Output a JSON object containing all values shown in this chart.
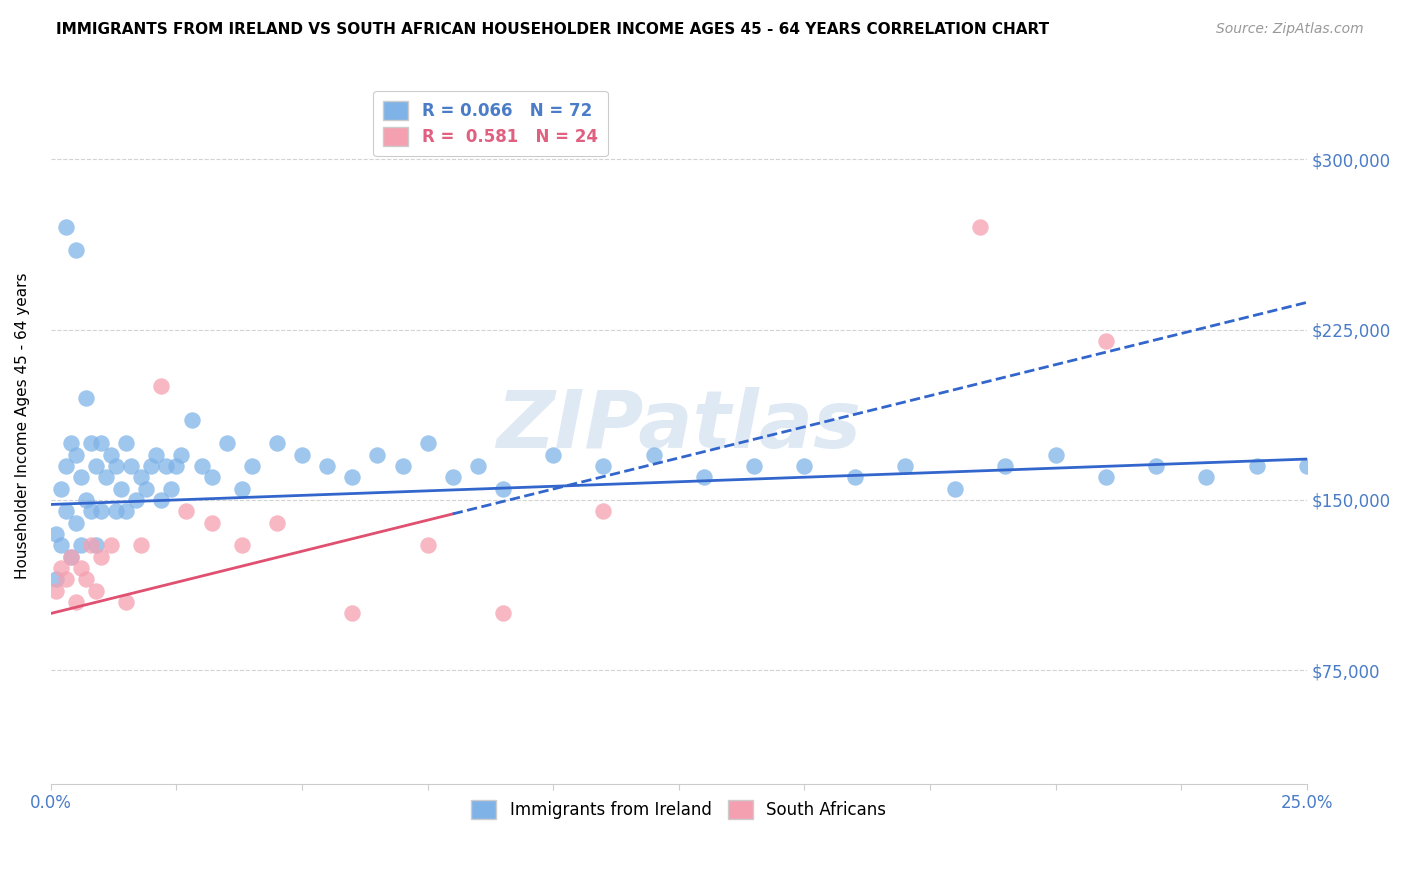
{
  "title": "IMMIGRANTS FROM IRELAND VS SOUTH AFRICAN HOUSEHOLDER INCOME AGES 45 - 64 YEARS CORRELATION CHART",
  "source": "Source: ZipAtlas.com",
  "ylabel": "Householder Income Ages 45 - 64 years",
  "xlim": [
    0.0,
    0.25
  ],
  "ylim": [
    25000,
    340000
  ],
  "xticks": [
    0.0,
    0.025,
    0.05,
    0.075,
    0.1,
    0.125,
    0.15,
    0.175,
    0.2,
    0.225,
    0.25
  ],
  "xticklabels": [
    "0.0%",
    "",
    "",
    "",
    "",
    "",
    "",
    "",
    "",
    "",
    "25.0%"
  ],
  "ytick_positions": [
    75000,
    150000,
    225000,
    300000
  ],
  "ytick_labels": [
    "$75,000",
    "$150,000",
    "$225,000",
    "$300,000"
  ],
  "legend1_label": "R = 0.066   N = 72",
  "legend2_label": "R =  0.581   N = 24",
  "color_blue": "#7fb3e8",
  "color_pink": "#f5a0b0",
  "color_blue_text": "#4a7cc7",
  "color_pink_text": "#e06080",
  "trend_blue_color": "#3366cc",
  "trend_pink_color": "#e05070",
  "watermark": "ZIPatlas",
  "ireland_x": [
    0.001,
    0.001,
    0.002,
    0.002,
    0.003,
    0.003,
    0.004,
    0.004,
    0.005,
    0.005,
    0.006,
    0.006,
    0.007,
    0.007,
    0.008,
    0.008,
    0.009,
    0.009,
    0.01,
    0.01,
    0.011,
    0.012,
    0.013,
    0.013,
    0.014,
    0.015,
    0.015,
    0.016,
    0.017,
    0.018,
    0.019,
    0.02,
    0.021,
    0.022,
    0.023,
    0.024,
    0.025,
    0.026,
    0.028,
    0.03,
    0.032,
    0.035,
    0.038,
    0.04,
    0.045,
    0.05,
    0.055,
    0.06,
    0.065,
    0.07,
    0.075,
    0.08,
    0.085,
    0.09,
    0.1,
    0.11,
    0.12,
    0.13,
    0.14,
    0.15,
    0.16,
    0.17,
    0.18,
    0.19,
    0.2,
    0.21,
    0.22,
    0.23,
    0.24,
    0.25,
    0.003,
    0.005
  ],
  "ireland_y": [
    135000,
    115000,
    155000,
    130000,
    165000,
    145000,
    175000,
    125000,
    170000,
    140000,
    160000,
    130000,
    195000,
    150000,
    175000,
    145000,
    165000,
    130000,
    175000,
    145000,
    160000,
    170000,
    165000,
    145000,
    155000,
    175000,
    145000,
    165000,
    150000,
    160000,
    155000,
    165000,
    170000,
    150000,
    165000,
    155000,
    165000,
    170000,
    185000,
    165000,
    160000,
    175000,
    155000,
    165000,
    175000,
    170000,
    165000,
    160000,
    170000,
    165000,
    175000,
    160000,
    165000,
    155000,
    170000,
    165000,
    170000,
    160000,
    165000,
    165000,
    160000,
    165000,
    155000,
    165000,
    170000,
    160000,
    165000,
    160000,
    165000,
    165000,
    270000,
    260000
  ],
  "sa_x": [
    0.001,
    0.002,
    0.003,
    0.004,
    0.005,
    0.006,
    0.007,
    0.008,
    0.009,
    0.01,
    0.012,
    0.015,
    0.018,
    0.022,
    0.027,
    0.032,
    0.038,
    0.045,
    0.06,
    0.075,
    0.09,
    0.11,
    0.185,
    0.21
  ],
  "sa_y": [
    110000,
    120000,
    115000,
    125000,
    105000,
    120000,
    115000,
    130000,
    110000,
    125000,
    130000,
    105000,
    130000,
    200000,
    145000,
    140000,
    130000,
    140000,
    100000,
    130000,
    100000,
    145000,
    270000,
    220000
  ],
  "trend_ire_x0": 0.0,
  "trend_ire_x1": 0.25,
  "trend_ire_y0": 148000,
  "trend_ire_y1": 168000,
  "trend_sa_x0": 0.0,
  "trend_sa_x1": 0.25,
  "trend_sa_y0": 100000,
  "trend_sa_y1": 237000,
  "trend_sa_solid_end": 0.08
}
